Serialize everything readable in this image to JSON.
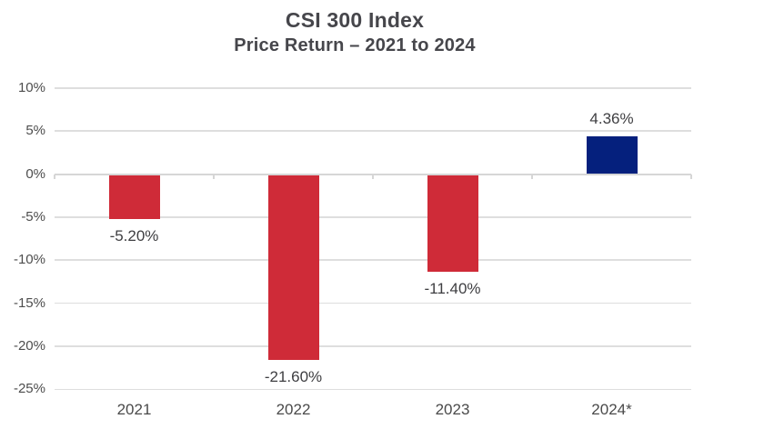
{
  "header": {
    "title": "CSI 300 Index",
    "subtitle": "Price Return – 2021 to 2024"
  },
  "chart_data": {
    "type": "bar",
    "title": "CSI 300 Index",
    "subtitle": "Price Return – 2021 to 2024",
    "categories": [
      "2021",
      "2022",
      "2023",
      "2024*"
    ],
    "values": [
      -5.2,
      -21.6,
      -11.4,
      4.36
    ],
    "value_labels": [
      "-5.20%",
      "-21.60%",
      "-11.40%",
      "4.36%"
    ],
    "bar_colors": [
      "#CF2B38",
      "#CF2B38",
      "#CF2B38",
      "#05207D"
    ],
    "xlabel": "",
    "ylabel": "",
    "ylim": [
      -25,
      10
    ],
    "ytick_step": 5,
    "yticks": [
      10,
      5,
      0,
      -5,
      -10,
      -15,
      -20,
      -25
    ],
    "ytick_labels": [
      "10%",
      "5%",
      "0%",
      "-5%",
      "-10%",
      "-15%",
      "-20%",
      "-25%"
    ],
    "grid": "horizontal",
    "legend": "none"
  },
  "colors": {
    "negative_bar": "#CF2B38",
    "positive_bar": "#05207D",
    "gridline": "#DEDEDE",
    "zero_axis": "#D6D6D6",
    "title_text": "#46464B",
    "value_label_text": "#3E3E41",
    "tick_label_text": "#4D4D4D"
  }
}
